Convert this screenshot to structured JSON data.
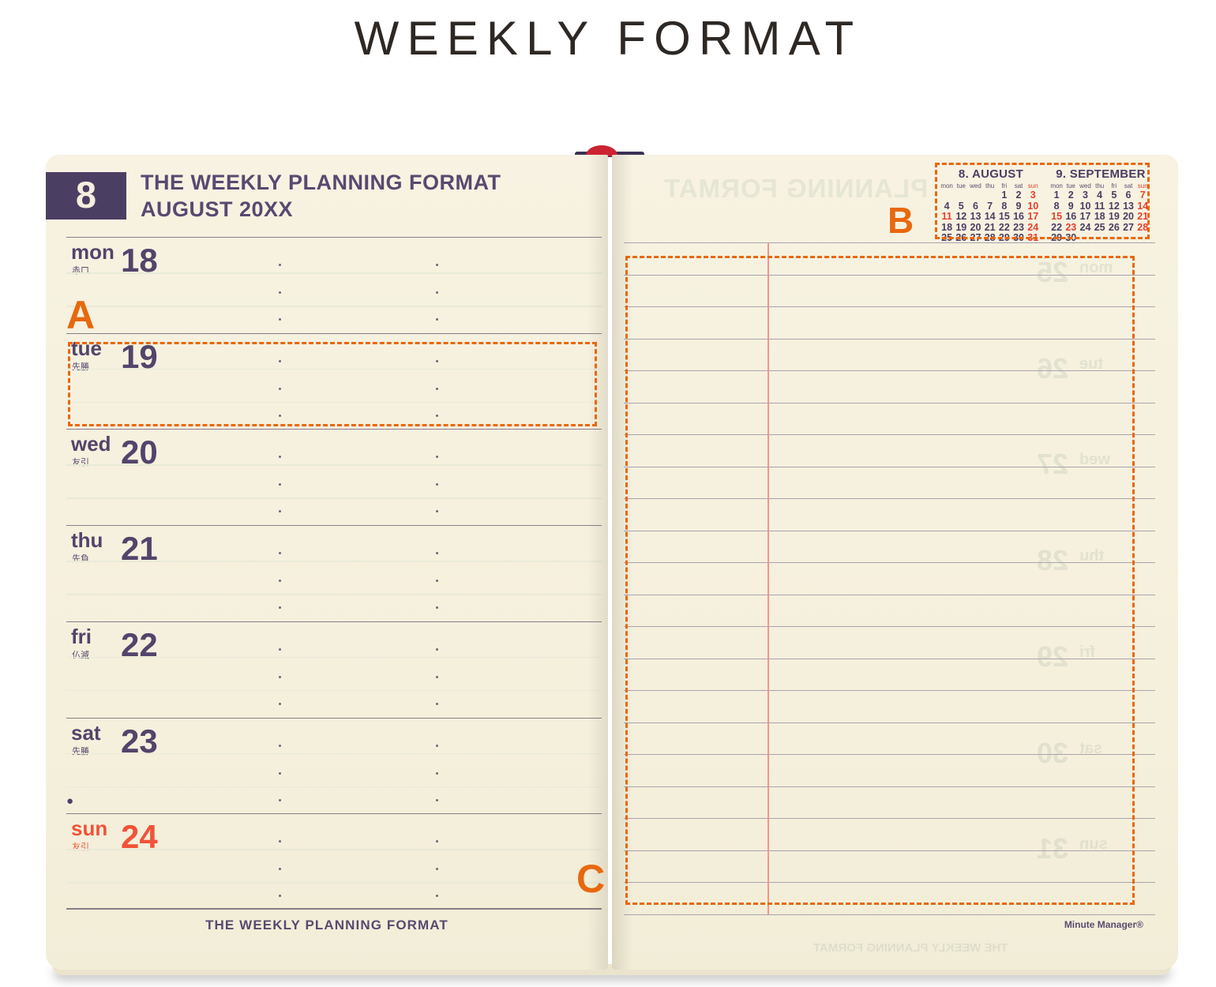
{
  "page_title": "WEEKLY FORMAT",
  "annotations": {
    "a": "A",
    "b": "B",
    "c": "C"
  },
  "left_page": {
    "month_number": "8",
    "title_line1": "THE WEEKLY PLANNING FORMAT",
    "title_line2": "AUGUST 20XX",
    "footer": "THE WEEKLY PLANNING FORMAT",
    "moon_phase_marker": "●",
    "days": [
      {
        "name": "mon",
        "rokuyo": "赤口",
        "date": "18",
        "holiday": false
      },
      {
        "name": "tue",
        "rokuyo": "先勝",
        "date": "19",
        "holiday": false
      },
      {
        "name": "wed",
        "rokuyo": "友引",
        "date": "20",
        "holiday": false
      },
      {
        "name": "thu",
        "rokuyo": "先負",
        "date": "21",
        "holiday": false
      },
      {
        "name": "fri",
        "rokuyo": "仏滅",
        "date": "22",
        "holiday": false
      },
      {
        "name": "sat",
        "rokuyo": "先勝",
        "date": "23",
        "holiday": false
      },
      {
        "name": "sun",
        "rokuyo": "友引",
        "date": "24",
        "holiday": true
      }
    ]
  },
  "right_page": {
    "brand": "Minute Manager®",
    "ruled_line_count": 22,
    "mini_calendars": [
      {
        "title": "8. AUGUST",
        "weekdays": [
          "mon",
          "tue",
          "wed",
          "thu",
          "fri",
          "sat",
          "sun"
        ],
        "weeks": [
          [
            "",
            "",
            "",
            "",
            "1",
            "2",
            "3"
          ],
          [
            "4",
            "5",
            "6",
            "7",
            "8",
            "9",
            "10"
          ],
          [
            "11",
            "12",
            "13",
            "14",
            "15",
            "16",
            "17"
          ],
          [
            "18",
            "19",
            "20",
            "21",
            "22",
            "23",
            "24"
          ],
          [
            "25",
            "26",
            "27",
            "28",
            "29",
            "30",
            "31"
          ]
        ],
        "red_days": [
          3,
          10,
          11,
          17,
          24,
          31
        ]
      },
      {
        "title": "9. SEPTEMBER",
        "weekdays": [
          "mon",
          "tue",
          "wed",
          "thu",
          "fri",
          "sat",
          "sun"
        ],
        "weeks": [
          [
            "1",
            "2",
            "3",
            "4",
            "5",
            "6",
            "7"
          ],
          [
            "8",
            "9",
            "10",
            "11",
            "12",
            "13",
            "14"
          ],
          [
            "15",
            "16",
            "17",
            "18",
            "19",
            "20",
            "21"
          ],
          [
            "22",
            "23",
            "24",
            "25",
            "26",
            "27",
            "28"
          ],
          [
            "29",
            "30",
            "",
            "",
            "",
            "",
            ""
          ]
        ],
        "red_days": [
          7,
          14,
          15,
          21,
          23,
          28
        ]
      }
    ],
    "ghost_texts": {
      "header": "PLANNING FORMAT",
      "footer": "THE WEEKLY PLANNING FORMAT",
      "days": [
        {
          "name": "mon",
          "num": "25"
        },
        {
          "name": "tue",
          "num": "26"
        },
        {
          "name": "wed",
          "num": "27"
        },
        {
          "name": "thu",
          "num": "28"
        },
        {
          "name": "fri",
          "num": "29"
        },
        {
          "name": "sat",
          "num": "30"
        },
        {
          "name": "sun",
          "num": "31"
        }
      ]
    }
  },
  "colors": {
    "paper": "#f6f1de",
    "ink": "#51456b",
    "badge": "#4a3e63",
    "sun_red": "#f0533a",
    "cal_red": "#e6402e",
    "annot": "#e8680e",
    "rule_gray": "#9c94a6",
    "red_rule": "#f0968c"
  }
}
